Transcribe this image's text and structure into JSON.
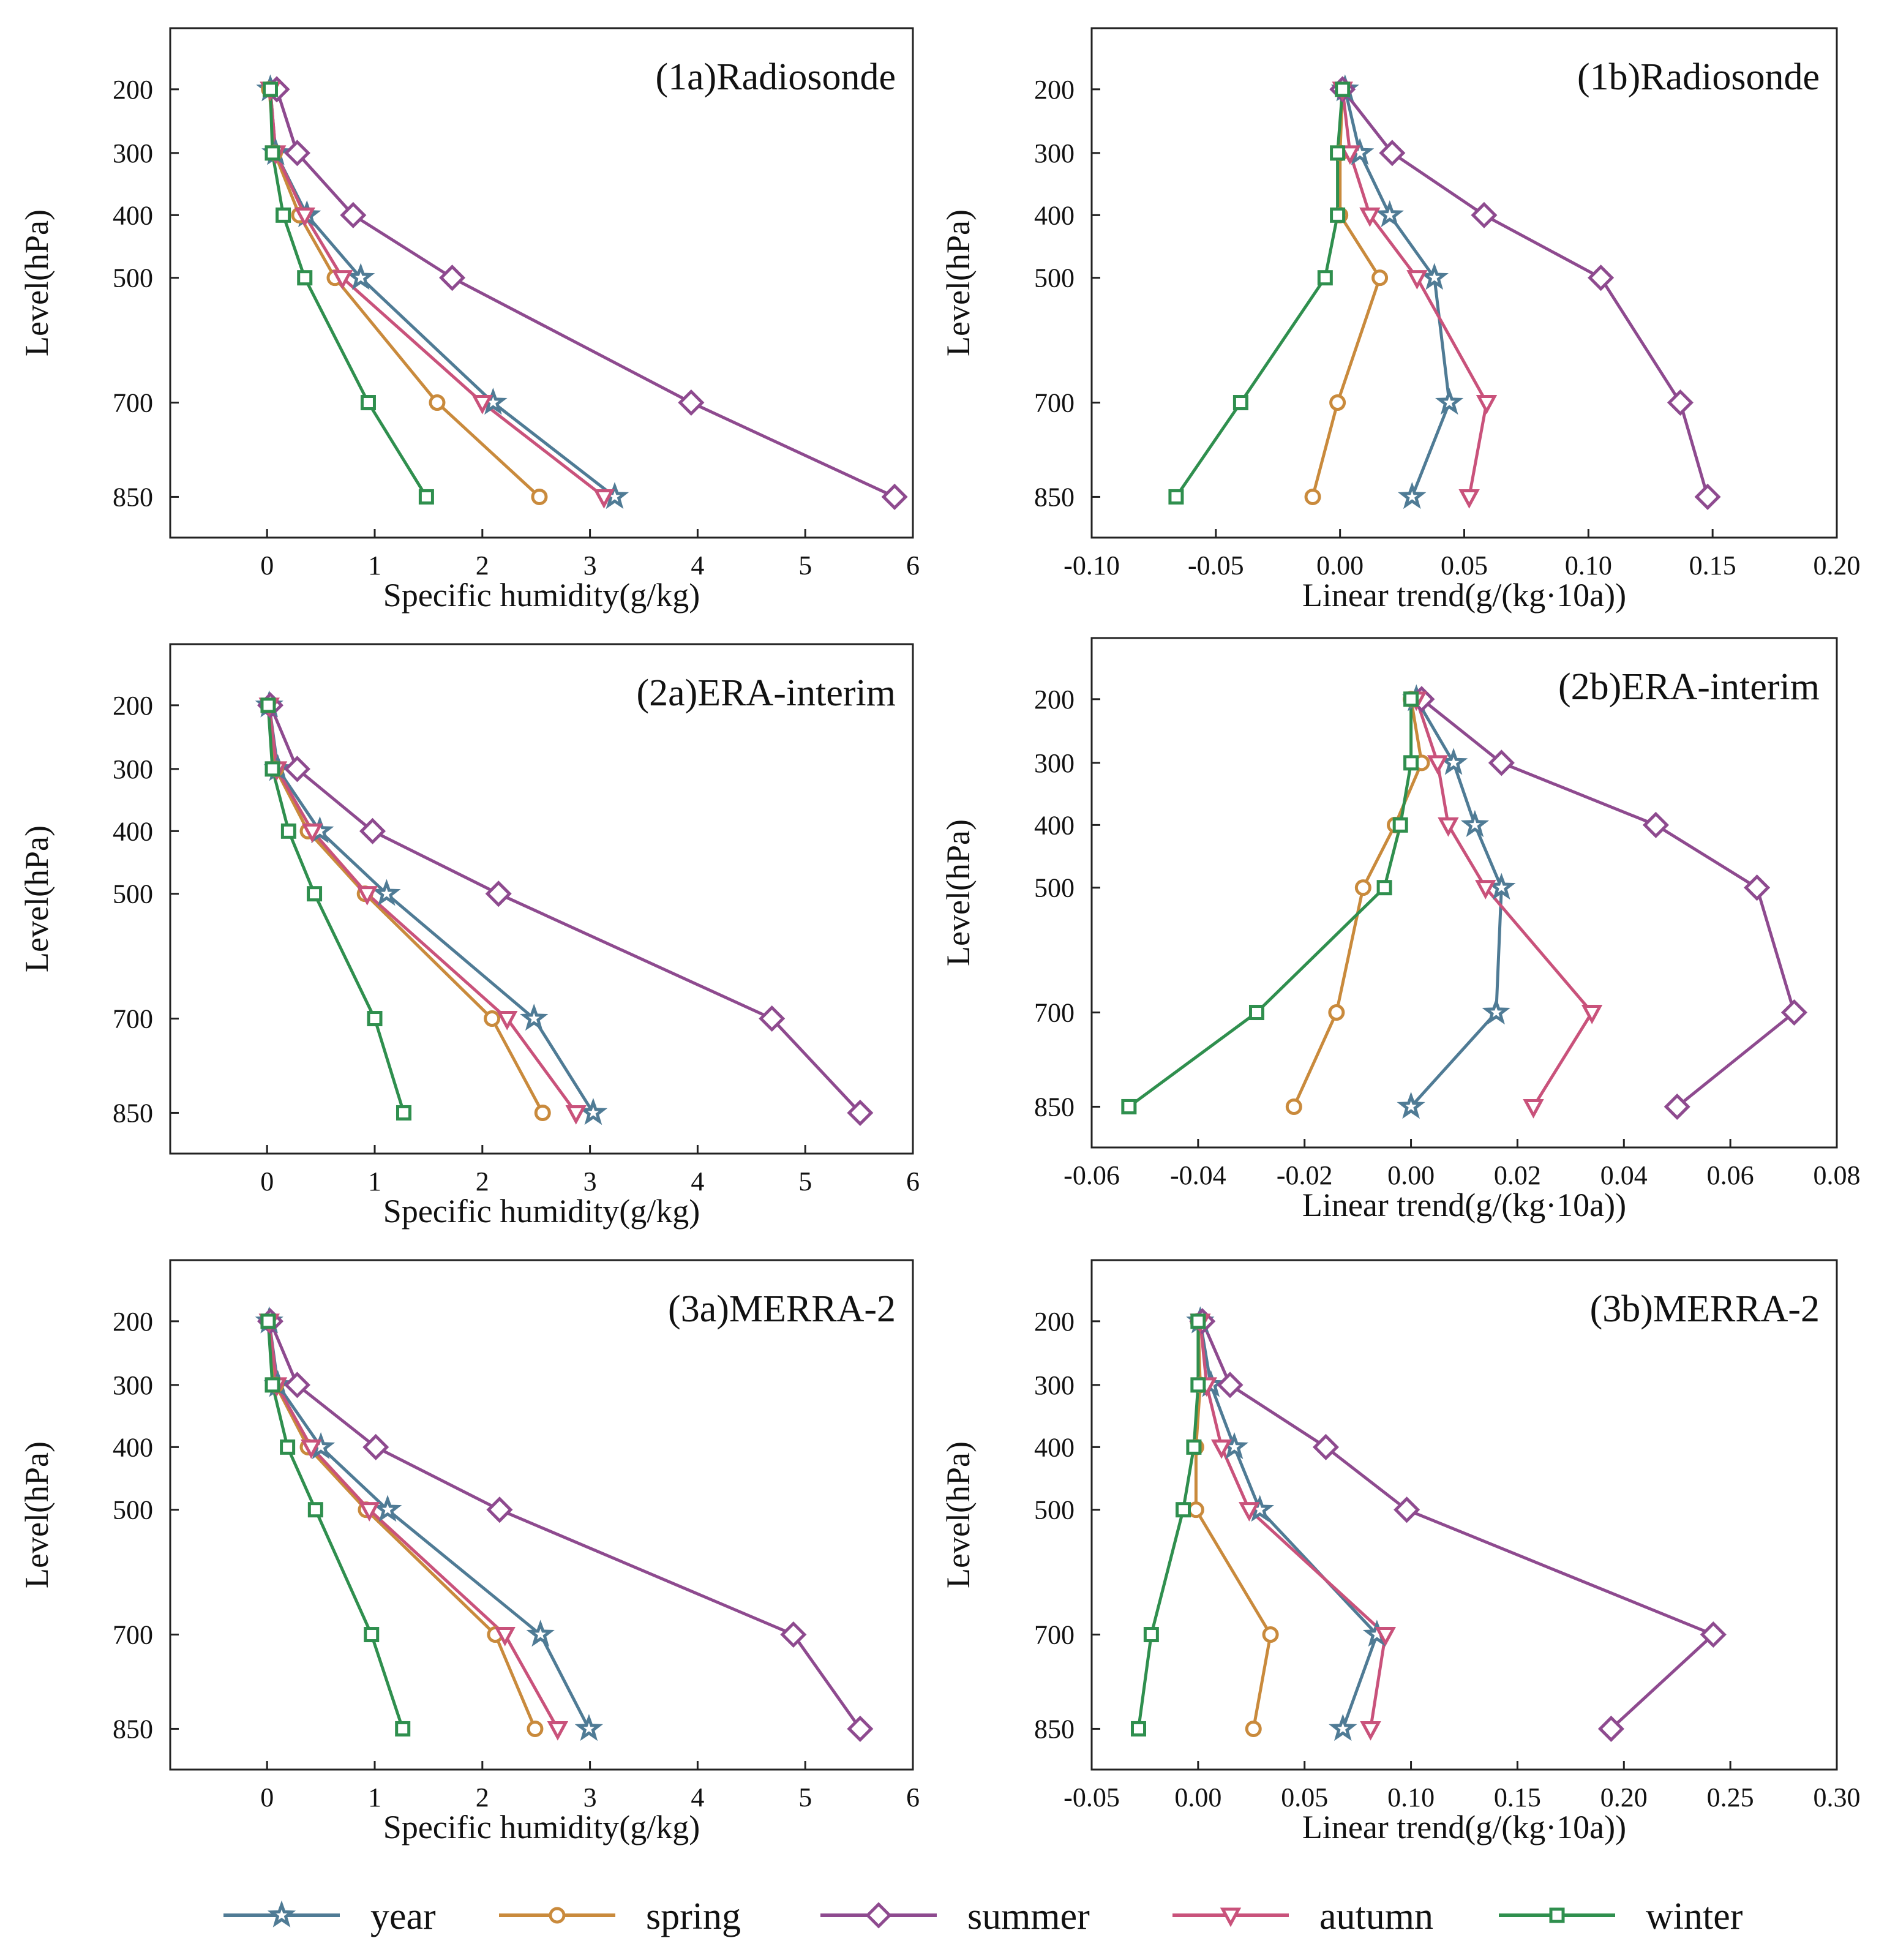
{
  "colors": {
    "year": "#4f7b95",
    "spring": "#c98a3c",
    "summer": "#8e4a8f",
    "autumn": "#c9527b",
    "winter": "#2f8f4e",
    "axis": "#222222"
  },
  "legend": [
    {
      "key": "year",
      "label": "year",
      "marker": "star"
    },
    {
      "key": "spring",
      "label": "spring",
      "marker": "circle"
    },
    {
      "key": "summer",
      "label": "summer",
      "marker": "diamond"
    },
    {
      "key": "autumn",
      "label": "autumn",
      "marker": "triangle-down"
    },
    {
      "key": "winter",
      "label": "winter",
      "marker": "square"
    }
  ],
  "chart_data": [
    {
      "id": "1a",
      "type": "line",
      "title": "(1a)Radiosonde",
      "xlabel": "Specific humidity(g/kg)",
      "ylabel": "Level(hPa)",
      "xlim": [
        -0.9,
        6
      ],
      "xticks": [
        0,
        1,
        2,
        3,
        4,
        5,
        6
      ],
      "xtick_labels": [
        "0",
        "1",
        "2",
        "3",
        "4",
        "5",
        "6"
      ],
      "levels": [
        200,
        300,
        400,
        500,
        700,
        850
      ],
      "level_labels": [
        "200",
        "300",
        "400",
        "500",
        "700",
        "850"
      ],
      "series": [
        {
          "name": "year",
          "values": [
            0.03,
            0.08,
            0.37,
            0.87,
            2.1,
            3.23
          ]
        },
        {
          "name": "spring",
          "values": [
            0.02,
            0.07,
            0.3,
            0.63,
            1.58,
            2.53
          ]
        },
        {
          "name": "summer",
          "values": [
            0.09,
            0.28,
            0.8,
            1.72,
            3.94,
            5.83
          ]
        },
        {
          "name": "autumn",
          "values": [
            0.03,
            0.08,
            0.35,
            0.7,
            2.0,
            3.13
          ]
        },
        {
          "name": "winter",
          "values": [
            0.03,
            0.05,
            0.15,
            0.35,
            0.94,
            1.48
          ]
        }
      ]
    },
    {
      "id": "1b",
      "type": "line",
      "title": "(1b)Radiosonde",
      "xlabel": "Linear trend(g/(kg·10a))",
      "ylabel": "Level(hPa)",
      "xlim": [
        -0.1,
        0.2
      ],
      "xticks": [
        -0.1,
        -0.05,
        0,
        0.05,
        0.1,
        0.15,
        0.2
      ],
      "xtick_labels": [
        "-0.10",
        "-0.05",
        "0.00",
        "0.05",
        "0.10",
        "0.15",
        "0.20"
      ],
      "levels": [
        200,
        300,
        400,
        500,
        700,
        850
      ],
      "level_labels": [
        "200",
        "300",
        "400",
        "500",
        "700",
        "850"
      ],
      "series": [
        {
          "name": "year",
          "values": [
            0.002,
            0.008,
            0.02,
            0.038,
            0.044,
            0.029
          ]
        },
        {
          "name": "spring",
          "values": [
            0.001,
            0.0,
            0.0,
            0.016,
            -0.001,
            -0.011
          ]
        },
        {
          "name": "summer",
          "values": [
            0.001,
            0.021,
            0.058,
            0.105,
            0.137,
            0.148
          ]
        },
        {
          "name": "autumn",
          "values": [
            0.001,
            0.004,
            0.012,
            0.031,
            0.059,
            0.052
          ]
        },
        {
          "name": "winter",
          "values": [
            0.001,
            -0.001,
            -0.001,
            -0.006,
            -0.04,
            -0.066
          ]
        }
      ]
    },
    {
      "id": "2a",
      "type": "line",
      "title": "(2a)ERA-interim",
      "xlabel": "Specific humidity(g/kg)",
      "ylabel": "Level(hPa)",
      "xlim": [
        -0.9,
        6
      ],
      "xticks": [
        0,
        1,
        2,
        3,
        4,
        5,
        6
      ],
      "xtick_labels": [
        "0",
        "1",
        "2",
        "3",
        "4",
        "5",
        "6"
      ],
      "levels": [
        200,
        300,
        400,
        500,
        700,
        850
      ],
      "level_labels": [
        "200",
        "300",
        "400",
        "500",
        "700",
        "850"
      ],
      "series": [
        {
          "name": "year",
          "values": [
            0.02,
            0.1,
            0.49,
            1.11,
            2.48,
            3.03
          ]
        },
        {
          "name": "spring",
          "values": [
            0.01,
            0.08,
            0.38,
            0.91,
            2.09,
            2.56
          ]
        },
        {
          "name": "summer",
          "values": [
            0.03,
            0.28,
            0.98,
            2.15,
            4.69,
            5.51
          ]
        },
        {
          "name": "autumn",
          "values": [
            0.02,
            0.09,
            0.42,
            0.93,
            2.23,
            2.87
          ]
        },
        {
          "name": "winter",
          "values": [
            0.01,
            0.05,
            0.2,
            0.44,
            1.0,
            1.27
          ]
        }
      ]
    },
    {
      "id": "2b",
      "type": "line",
      "title": "(2b)ERA-interim",
      "xlabel": "Linear trend(g/(kg·10a))",
      "ylabel": "Level(hPa)",
      "xlim": [
        -0.06,
        0.08
      ],
      "xticks": [
        -0.06,
        -0.04,
        -0.02,
        0,
        0.02,
        0.04,
        0.06,
        0.08
      ],
      "xtick_labels": [
        "-0.06",
        "-0.04",
        "-0.02",
        "0.00",
        "0.02",
        "0.04",
        "0.06",
        "0.08"
      ],
      "levels": [
        200,
        300,
        400,
        500,
        700,
        850
      ],
      "level_labels": [
        "200",
        "300",
        "400",
        "500",
        "700",
        "850"
      ],
      "series": [
        {
          "name": "year",
          "values": [
            0.001,
            0.008,
            0.012,
            0.017,
            0.016,
            0.0
          ]
        },
        {
          "name": "spring",
          "values": [
            0.0,
            0.002,
            -0.003,
            -0.009,
            -0.014,
            -0.022
          ]
        },
        {
          "name": "summer",
          "values": [
            0.002,
            0.017,
            0.046,
            0.065,
            0.072,
            0.05
          ]
        },
        {
          "name": "autumn",
          "values": [
            0.001,
            0.005,
            0.007,
            0.014,
            0.034,
            0.023
          ]
        },
        {
          "name": "winter",
          "values": [
            0.0,
            0.0,
            -0.002,
            -0.005,
            -0.029,
            -0.053
          ]
        }
      ]
    },
    {
      "id": "3a",
      "type": "line",
      "title": "(3a)MERRA-2",
      "xlabel": "Specific humidity(g/kg)",
      "ylabel": "Level(hPa)",
      "xlim": [
        -0.9,
        6
      ],
      "xticks": [
        0,
        1,
        2,
        3,
        4,
        5,
        6
      ],
      "xtick_labels": [
        "0",
        "1",
        "2",
        "3",
        "4",
        "5",
        "6"
      ],
      "levels": [
        200,
        300,
        400,
        500,
        700,
        850
      ],
      "level_labels": [
        "200",
        "300",
        "400",
        "500",
        "700",
        "850"
      ],
      "series": [
        {
          "name": "year",
          "values": [
            0.02,
            0.1,
            0.5,
            1.12,
            2.54,
            2.99
          ]
        },
        {
          "name": "spring",
          "values": [
            0.01,
            0.08,
            0.38,
            0.92,
            2.12,
            2.49
          ]
        },
        {
          "name": "summer",
          "values": [
            0.03,
            0.28,
            1.01,
            2.16,
            4.89,
            5.51
          ]
        },
        {
          "name": "autumn",
          "values": [
            0.02,
            0.09,
            0.41,
            0.95,
            2.21,
            2.7
          ]
        },
        {
          "name": "winter",
          "values": [
            0.01,
            0.05,
            0.19,
            0.45,
            0.97,
            1.26
          ]
        }
      ]
    },
    {
      "id": "3b",
      "type": "line",
      "title": "(3b)MERRA-2",
      "xlabel": "Linear trend(g/(kg·10a))",
      "ylabel": "Level(hPa)",
      "xlim": [
        -0.05,
        0.3
      ],
      "xticks": [
        -0.05,
        0,
        0.05,
        0.1,
        0.15,
        0.2,
        0.25,
        0.3
      ],
      "xtick_labels": [
        "-0.05",
        "0.00",
        "0.05",
        "0.10",
        "0.15",
        "0.20",
        "0.25",
        "0.30"
      ],
      "levels": [
        200,
        300,
        400,
        500,
        700,
        850
      ],
      "level_labels": [
        "200",
        "300",
        "400",
        "500",
        "700",
        "850"
      ],
      "series": [
        {
          "name": "year",
          "values": [
            0.001,
            0.006,
            0.017,
            0.029,
            0.084,
            0.068
          ]
        },
        {
          "name": "spring",
          "values": [
            0.0,
            0.001,
            -0.001,
            -0.001,
            0.034,
            0.026
          ]
        },
        {
          "name": "summer",
          "values": [
            0.002,
            0.015,
            0.06,
            0.098,
            0.242,
            0.194
          ]
        },
        {
          "name": "autumn",
          "values": [
            0.001,
            0.004,
            0.011,
            0.024,
            0.088,
            0.081
          ]
        },
        {
          "name": "winter",
          "values": [
            0.0,
            0.0,
            -0.002,
            -0.007,
            -0.022,
            -0.028
          ]
        }
      ]
    }
  ]
}
